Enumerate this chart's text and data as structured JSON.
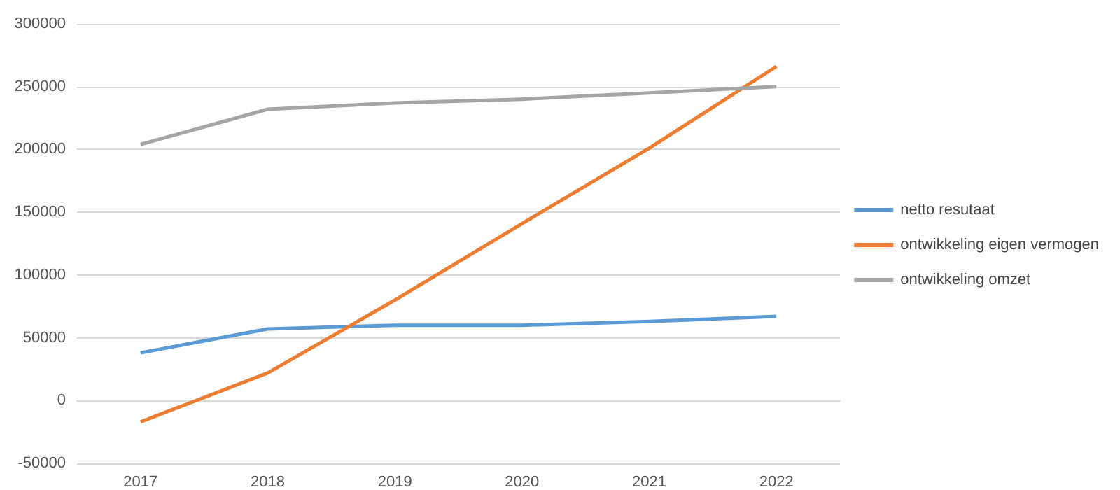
{
  "chart_data": {
    "type": "line",
    "categories": [
      "2017",
      "2018",
      "2019",
      "2020",
      "2021",
      "2022"
    ],
    "series": [
      {
        "name": "netto resutaat",
        "color": "#5b9bd5",
        "values": [
          38000,
          57000,
          60000,
          60000,
          63000,
          67000
        ]
      },
      {
        "name": "ontwikkeling eigen vermogen",
        "color": "#ed7d31",
        "values": [
          -17000,
          22000,
          80000,
          141000,
          201000,
          266000
        ]
      },
      {
        "name": "ontwikkeling omzet",
        "color": "#a5a5a5",
        "values": [
          204000,
          232000,
          237000,
          240000,
          245000,
          250000
        ]
      }
    ],
    "ylim": [
      -50000,
      300000
    ],
    "yticks": [
      -50000,
      0,
      50000,
      100000,
      150000,
      200000,
      250000,
      300000
    ],
    "grid": "y",
    "legend": "right",
    "marker": "none",
    "line_style": "solid"
  }
}
